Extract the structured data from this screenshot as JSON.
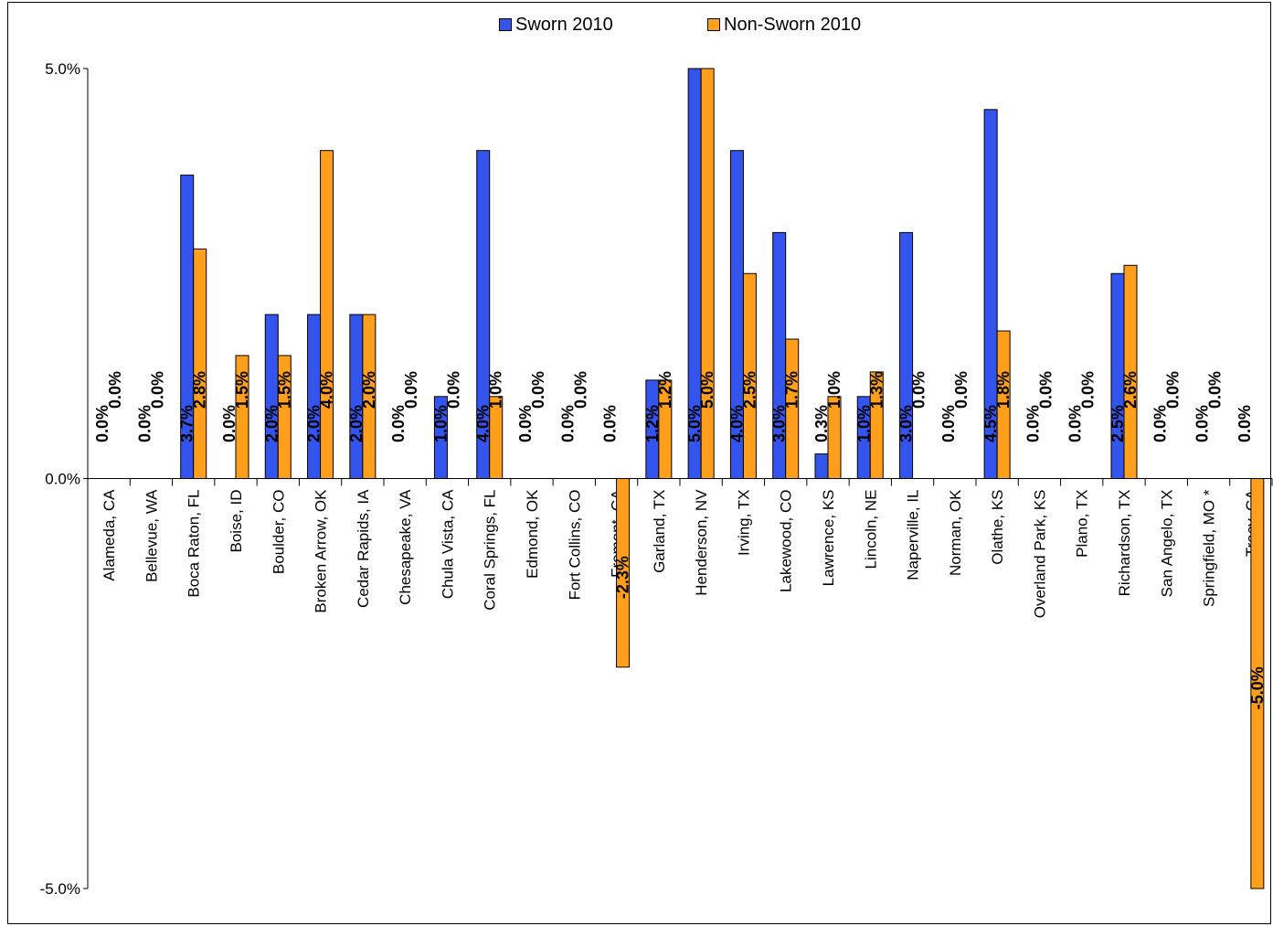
{
  "chart_data": {
    "type": "bar",
    "title": "",
    "xlabel": "",
    "ylabel": "",
    "ylim": [
      -5.0,
      5.0
    ],
    "yticks": [
      "-5.0%",
      "0.0%",
      "5.0%"
    ],
    "legend_position": "top",
    "grid": false,
    "categories": [
      "Alameda, CA",
      "Bellevue, WA",
      "Boca Raton, FL",
      "Boise, ID",
      "Boulder, CO",
      "Broken Arrow, OK",
      "Cedar Rapids, IA",
      "Chesapeake, VA",
      "Chula Vista, CA",
      "Coral Springs, FL",
      "Edmond, OK",
      "Fort Collins, CO",
      "Fremont, CA",
      "Garland, TX",
      "Henderson, NV",
      "Irving, TX",
      "Lakewood, CO",
      "Lawrence, KS",
      "Lincoln, NE",
      "Naperville, IL",
      "Norman, OK",
      "Olathe, KS",
      "Overland Park, KS",
      "Plano, TX",
      "Richardson, TX",
      "San Angelo, TX",
      "Springfield, MO *",
      "Tracy, CA"
    ],
    "series": [
      {
        "name": "Sworn 2010",
        "color": "#3355ee",
        "values": [
          0.0,
          0.0,
          3.7,
          0.0,
          2.0,
          2.0,
          2.0,
          0.0,
          1.0,
          4.0,
          0.0,
          0.0,
          0.0,
          1.2,
          5.0,
          4.0,
          3.0,
          0.3,
          1.0,
          3.0,
          0.0,
          4.5,
          0.0,
          0.0,
          2.5,
          0.0,
          0.0,
          0.0
        ],
        "labels": [
          "0.0%",
          "0.0%",
          "3.7%",
          "0.0%",
          "2.0%",
          "2.0%",
          "2.0%",
          "0.0%",
          "1.0%",
          "4.0%",
          "0.0%",
          "0.0%",
          "0.0%",
          "1.2%",
          "5.0%",
          "4.0%",
          "3.0%",
          "0.3%",
          "1.0%",
          "3.0%",
          "0.0%",
          "4.5%",
          "0.0%",
          "0.0%",
          "2.5%",
          "0.0%",
          "0.0%",
          "0.0%"
        ]
      },
      {
        "name": "Non-Sworn 2010",
        "color": "#ff9f1c",
        "values": [
          0.0,
          0.0,
          2.8,
          1.5,
          1.5,
          4.0,
          2.0,
          0.0,
          0.0,
          1.0,
          0.0,
          0.0,
          -2.3,
          1.2,
          5.0,
          2.5,
          1.7,
          1.0,
          1.3,
          0.0,
          0.0,
          1.8,
          0.0,
          0.0,
          2.6,
          0.0,
          0.0,
          -5.0
        ],
        "labels": [
          "0.0%",
          "0.0%",
          "2.8%",
          "1.5%",
          "1.5%",
          "4.0%",
          "2.0%",
          "0.0%",
          "0.0%",
          "1.0%",
          "0.0%",
          "0.0%",
          "-2.3%",
          "1.2%",
          "5.0%",
          "2.5%",
          "1.7%",
          "1.0%",
          "1.3%",
          "0.0%",
          "0.0%",
          "1.8%",
          "0.0%",
          "0.0%",
          "2.6%",
          "0.0%",
          "0.0%",
          "-5.0%"
        ]
      }
    ]
  }
}
